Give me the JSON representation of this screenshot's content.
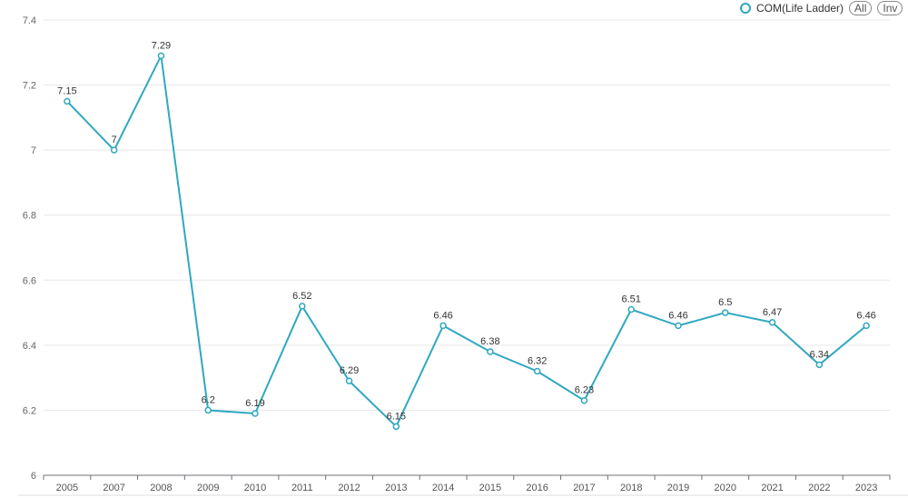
{
  "legend": {
    "series_label": "COM(Life Ladder)",
    "buttons": [
      "All",
      "Inv"
    ]
  },
  "chart_data": {
    "type": "line",
    "title": "",
    "xlabel": "",
    "ylabel": "",
    "categories": [
      "2005",
      "2007",
      "2008",
      "2009",
      "2010",
      "2011",
      "2012",
      "2013",
      "2014",
      "2015",
      "2016",
      "2017",
      "2018",
      "2019",
      "2020",
      "2021",
      "2022",
      "2023"
    ],
    "series": [
      {
        "name": "COM(Life Ladder)",
        "values": [
          7.15,
          7,
          7.29,
          6.2,
          6.19,
          6.52,
          6.29,
          6.15,
          6.46,
          6.38,
          6.32,
          6.23,
          6.51,
          6.46,
          6.5,
          6.47,
          6.34,
          6.46
        ]
      }
    ],
    "ylim": [
      6,
      7.4
    ],
    "yticks": [
      6,
      6.2,
      6.4,
      6.6,
      6.8,
      7,
      7.2,
      7.4
    ],
    "grid": true,
    "legend_position": "top-right",
    "color": "#2fa8c0"
  }
}
